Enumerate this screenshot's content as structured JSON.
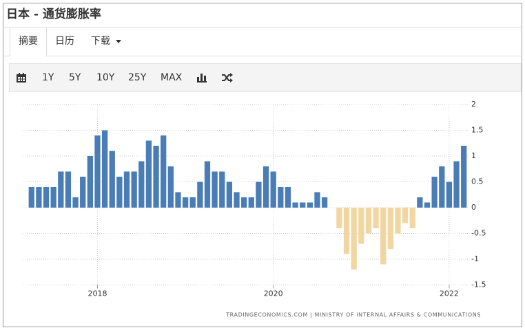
{
  "header": {
    "title": "日本 - 通货膨胀率"
  },
  "tabs": [
    "摘要",
    "日历",
    "下载"
  ],
  "toolbar": {
    "buttons": [
      "1Y",
      "5Y",
      "10Y",
      "25Y",
      "MAX"
    ]
  },
  "chart_data": {
    "type": "bar",
    "x": [
      2017.25,
      2017.3333,
      2017.4167,
      2017.5,
      2017.5833,
      2017.6667,
      2017.75,
      2017.8333,
      2017.9167,
      2018,
      2018.0833,
      2018.1667,
      2018.25,
      2018.3333,
      2018.4167,
      2018.5,
      2018.5833,
      2018.6667,
      2018.75,
      2018.8333,
      2018.9167,
      2019,
      2019.0833,
      2019.1667,
      2019.25,
      2019.3333,
      2019.4167,
      2019.5,
      2019.5833,
      2019.6667,
      2019.75,
      2019.8333,
      2019.9167,
      2020,
      2020.0833,
      2020.1667,
      2020.25,
      2020.3333,
      2020.4167,
      2020.5,
      2020.5833,
      2020.6667,
      2020.75,
      2020.8333,
      2020.9167,
      2021,
      2021.0833,
      2021.1667,
      2021.25,
      2021.3333,
      2021.4167,
      2021.5,
      2021.5833,
      2021.6667,
      2021.75,
      2021.8333,
      2021.9167,
      2022,
      2022.0833,
      2022.1667
    ],
    "series": [
      {
        "color": "#4a7db5",
        "negative_color": "#f2d6a2",
        "values": [
          0.4,
          0.4,
          0.4,
          0.4,
          0.7,
          0.7,
          0.2,
          0.6,
          1.0,
          1.4,
          1.5,
          1.1,
          0.6,
          0.7,
          0.7,
          0.9,
          1.3,
          1.2,
          1.4,
          0.8,
          0.3,
          0.2,
          0.2,
          0.5,
          0.9,
          0.7,
          0.7,
          0.5,
          0.3,
          0.2,
          0.2,
          0.5,
          0.8,
          0.7,
          0.4,
          0.4,
          0.1,
          0.1,
          0.1,
          0.3,
          0.2,
          0.0,
          -0.4,
          -0.9,
          -1.2,
          -0.7,
          -0.5,
          -0.4,
          -1.1,
          -0.8,
          -0.5,
          -0.3,
          -0.4,
          0.2,
          0.1,
          0.6,
          0.8,
          0.5,
          0.9,
          1.2
        ]
      }
    ],
    "xlim": [
      2017.15,
      2022.22
    ],
    "xticks": [
      2018,
      2020,
      2022
    ],
    "ylim": [
      -1.5,
      2
    ],
    "yticks": [
      2,
      1.5,
      1,
      0.5,
      0,
      -0.5,
      -1,
      -1.5
    ],
    "grid": true
  },
  "source": "TRADINGECONOMICS.COM | MINISTRY OF INTERNAL AFFAIRS & COMMUNICATIONS"
}
